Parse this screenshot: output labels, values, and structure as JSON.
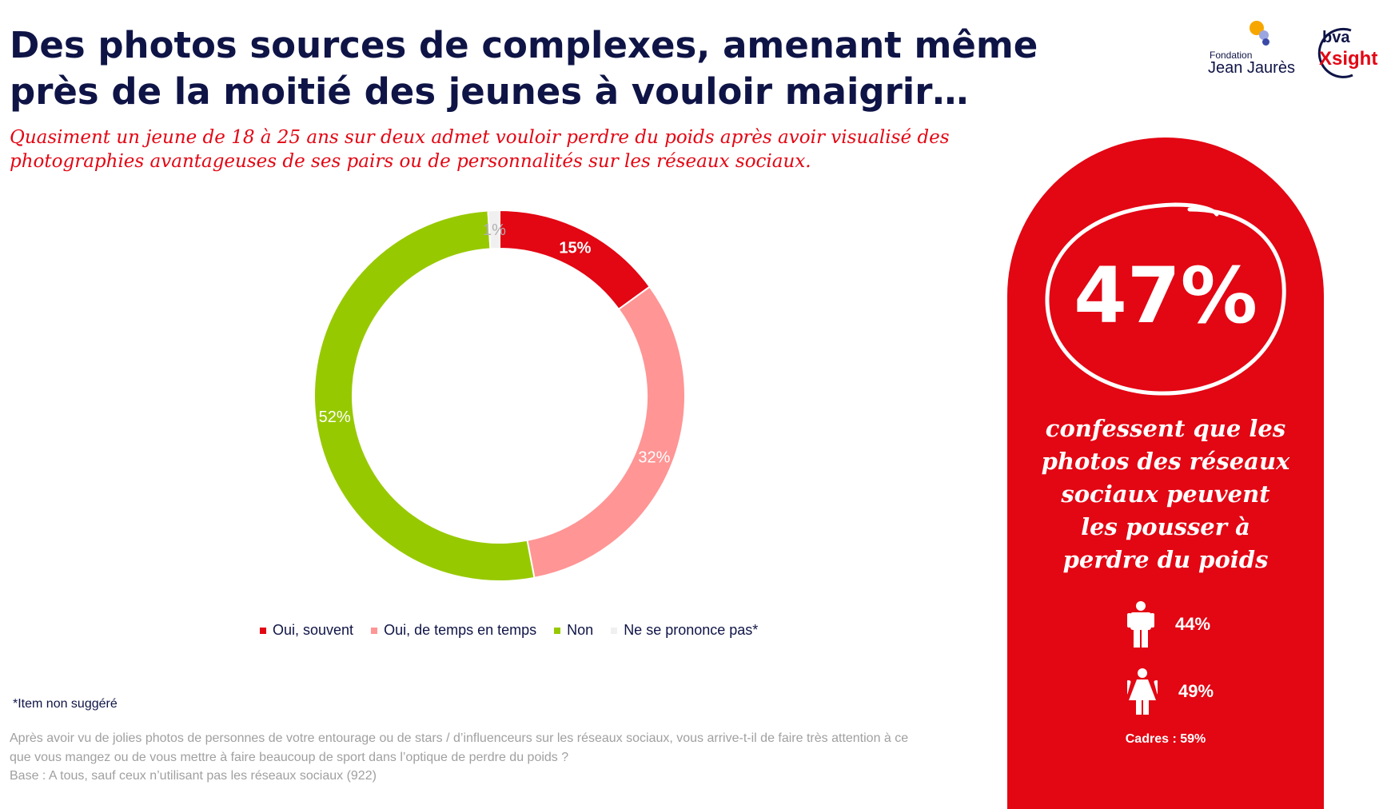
{
  "header": {
    "title": "Des photos sources de complexes, amenant même près de la moitié des jeunes à vouloir maigrir…",
    "subtitle": "Quasiment un jeune de 18 à 25 ans sur deux admet vouloir perdre du poids après avoir visualisé des photographies avantageuses de ses pairs ou de personnalités sur les réseaux sociaux."
  },
  "logos": {
    "fjj_small": "Fondation",
    "fjj_big": "Jean Jaurès",
    "bva": "bva",
    "xsight": "Xsight"
  },
  "chart_data": {
    "type": "pie",
    "variant": "donut",
    "categories": [
      "Oui, souvent",
      "Oui, de temps en temps",
      "Non",
      "Ne se prononce pas*"
    ],
    "values": [
      15,
      32,
      52,
      1
    ],
    "labels": [
      "15%",
      "32%",
      "52%",
      "1%"
    ],
    "colors": [
      "#e30613",
      "#ff9595",
      "#97c900",
      "#f0f0f0"
    ],
    "label_colors": [
      "#ffffff",
      "#ffffff",
      "#ffffff",
      "#b0b0b0"
    ],
    "legend_position": "bottom"
  },
  "footnotes": {
    "item": "*Item non suggéré",
    "question": "Après avoir vu de jolies photos de personnes de votre entourage ou de stars / d’influenceurs sur les réseaux sociaux, vous arrive-t-il de faire très attention à ce que vous mangez ou de vous mettre à faire beaucoup de sport dans l’optique de perdre du poids ?",
    "base": "Base : A tous, sauf ceux n’utilisant pas les réseaux sociaux (922)"
  },
  "panel": {
    "big_value": "47%",
    "text": "confessent que les photos des réseaux sociaux peuvent les pousser à perdre du poids",
    "men_icon": "man-icon",
    "men_value": "44%",
    "women_icon": "woman-icon",
    "women_value": "49%",
    "cadres": "Cadres : 59%",
    "color": "#e30613"
  }
}
